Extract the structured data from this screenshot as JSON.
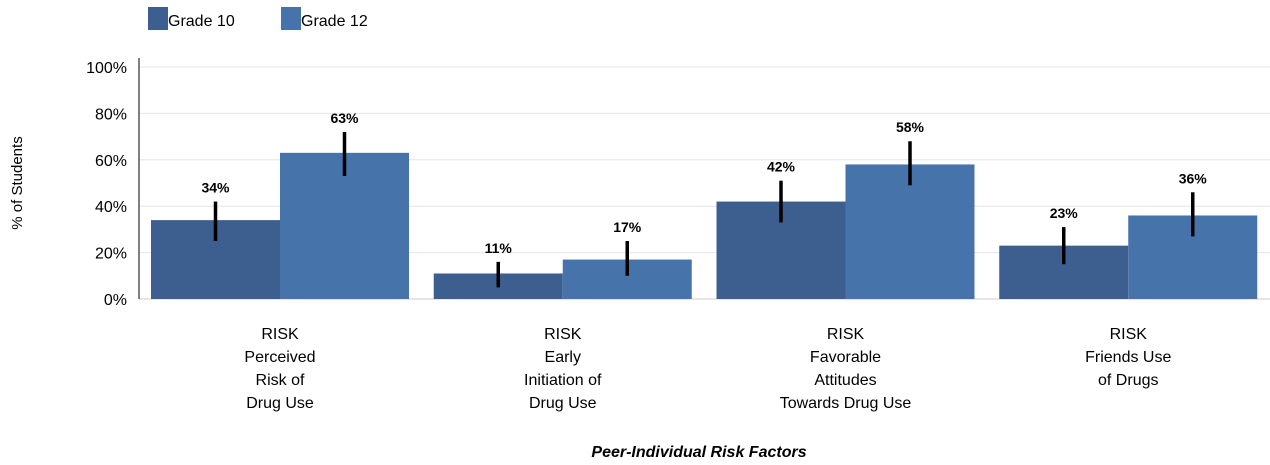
{
  "chart_data": {
    "type": "bar",
    "xlabel": "Peer-Individual Risk Factors",
    "ylabel": "% of Students",
    "ylim": [
      0,
      100
    ],
    "yticks": [
      "0%",
      "20%",
      "40%",
      "60%",
      "80%",
      "100%"
    ],
    "ytick_values": [
      0,
      20,
      40,
      60,
      80,
      100
    ],
    "grid": true,
    "legend_position": "top-left",
    "categories": [
      [
        "RISK",
        "Perceived",
        "Risk of",
        "Drug Use"
      ],
      [
        "RISK",
        "Early",
        "Initiation of",
        "Drug Use"
      ],
      [
        "RISK",
        "Favorable",
        "Attitudes",
        "Towards Drug Use"
      ],
      [
        "RISK",
        "Friends Use",
        "of Drugs"
      ]
    ],
    "series": [
      {
        "name": "Grade 10",
        "color": "#3c5f90",
        "values": [
          34,
          11,
          42,
          23
        ],
        "labels": [
          "34%",
          "11%",
          "42%",
          "23%"
        ],
        "error_low": [
          25,
          5,
          33,
          15
        ],
        "error_high": [
          42,
          16,
          51,
          31
        ]
      },
      {
        "name": "Grade 12",
        "color": "#4674aa",
        "values": [
          63,
          17,
          58,
          36
        ],
        "labels": [
          "63%",
          "17%",
          "58%",
          "36%"
        ],
        "error_low": [
          53,
          10,
          49,
          27
        ],
        "error_high": [
          72,
          25,
          68,
          46
        ]
      }
    ]
  }
}
